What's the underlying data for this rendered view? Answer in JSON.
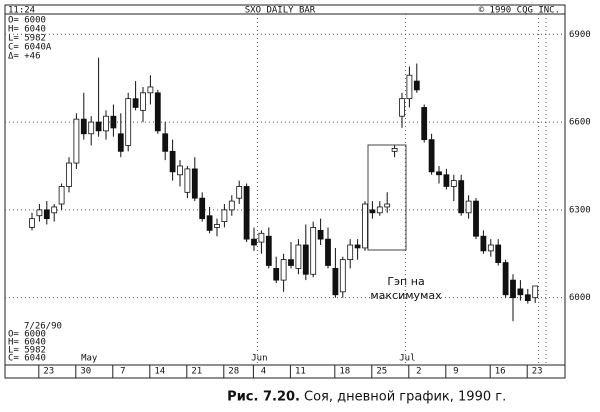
{
  "chart_data": {
    "type": "candlestick",
    "header": [
      "11:24",
      "SXO DAILY BAR",
      "© 1990 CQG INC."
    ],
    "info_top": [
      "O= 6000",
      "H= 6040",
      "L= 5982",
      "C= 6040A",
      "Δ=  +46"
    ],
    "info_bottom": [
      "7/26/90",
      "O=  6000",
      "H=  6040",
      "L=  5982",
      "C=  6040"
    ],
    "annotation": [
      "Гэп на",
      "максимумах"
    ],
    "caption_label": "Рис. 7.20.",
    "caption": "Соя, дневной график, 1990 г.",
    "categories": [
      null,
      null,
      "23",
      null,
      null,
      null,
      null,
      "30",
      null,
      null,
      null,
      null,
      "7",
      null,
      null,
      null,
      null,
      "14",
      null,
      null,
      null,
      null,
      "21",
      null,
      null,
      null,
      null,
      "28",
      null,
      null,
      null,
      "4",
      null,
      null,
      null,
      null,
      "11",
      null,
      null,
      null,
      null,
      null,
      "18",
      null,
      null,
      null,
      null,
      "25",
      null,
      null,
      null,
      null,
      "2",
      null,
      null,
      null,
      null,
      "9",
      null,
      null,
      null,
      null,
      null,
      "16",
      null,
      null,
      null,
      null,
      "23",
      null,
      null
    ],
    "months": [
      null,
      null,
      null,
      null,
      null,
      null,
      null,
      null,
      "May",
      null,
      null,
      null,
      null,
      null,
      null,
      null,
      null,
      null,
      null,
      null,
      null,
      null,
      null,
      null,
      null,
      null,
      null,
      null,
      null,
      null,
      null,
      "Jun",
      null,
      null,
      null,
      null,
      null,
      null,
      null,
      null,
      null,
      null,
      null,
      null,
      null,
      null,
      null,
      null,
      null,
      null,
      null,
      "Jul",
      null,
      null,
      null,
      null,
      null,
      null,
      null,
      null,
      null,
      null,
      null,
      null,
      null,
      null,
      null,
      null,
      null
    ],
    "open": [
      6240,
      6280,
      6300,
      6290,
      6320,
      6380,
      6460,
      6610,
      6560,
      6600,
      6570,
      6620,
      6560,
      6520,
      6680,
      6640,
      6700,
      6700,
      6560,
      6500,
      6420,
      6360,
      6440,
      6340,
      6280,
      6240,
      6260,
      6300,
      6340,
      6380,
      6200,
      6190,
      6210,
      6100,
      6060,
      6130,
      6100,
      6180,
      6080,
      6230,
      6200,
      6100,
      6020,
      6130,
      6180,
      6170,
      6300,
      6290,
      6310,
      6500,
      6620,
      6680,
      6740,
      6650,
      6540,
      6430,
      6420,
      6380,
      6400,
      6290,
      6330,
      6210,
      6160,
      6180,
      6120,
      6060,
      6030,
      6010,
      6000
    ],
    "high": [
      6290,
      6320,
      6330,
      6320,
      6390,
      6480,
      6630,
      6700,
      6620,
      6820,
      6640,
      6660,
      6630,
      6700,
      6740,
      6720,
      6760,
      6710,
      6600,
      6540,
      6470,
      6450,
      6480,
      6360,
      6310,
      6270,
      6320,
      6350,
      6400,
      6390,
      6240,
      6230,
      6240,
      6140,
      6150,
      6190,
      6200,
      6250,
      6260,
      6270,
      6240,
      6170,
      6140,
      6200,
      6200,
      6330,
      6330,
      6330,
      6360,
      6520,
      6700,
      6790,
      6800,
      6660,
      6560,
      6450,
      6440,
      6420,
      6420,
      6350,
      6340,
      6230,
      6200,
      6200,
      6130,
      6080,
      6060,
      6030,
      6040
    ],
    "low": [
      6230,
      6260,
      6250,
      6260,
      6300,
      6360,
      6440,
      6540,
      6520,
      6550,
      6540,
      6550,
      6480,
      6500,
      6640,
      6600,
      6660,
      6560,
      6470,
      6400,
      6380,
      6340,
      6330,
      6260,
      6220,
      6210,
      6240,
      6280,
      6320,
      6190,
      6160,
      6150,
      6100,
      6050,
      6020,
      6100,
      6080,
      6060,
      6070,
      6180,
      6100,
      6000,
      6000,
      6100,
      6130,
      6160,
      6270,
      6280,
      6290,
      6480,
      6580,
      6650,
      6700,
      6530,
      6420,
      6390,
      6370,
      6330,
      6280,
      6270,
      6200,
      6150,
      6140,
      6110,
      6000,
      5920,
      5990,
      5980,
      5982
    ],
    "close": [
      6270,
      6300,
      6270,
      6310,
      6380,
      6460,
      6610,
      6560,
      6600,
      6570,
      6620,
      6580,
      6500,
      6680,
      6650,
      6700,
      6720,
      6570,
      6500,
      6430,
      6450,
      6440,
      6340,
      6270,
      6230,
      6250,
      6300,
      6330,
      6380,
      6200,
      6180,
      6220,
      6110,
      6060,
      6130,
      6110,
      6180,
      6080,
      6240,
      6200,
      6110,
      6010,
      6130,
      6180,
      6170,
      6320,
      6290,
      6310,
      6320,
      6510,
      6680,
      6760,
      6710,
      6540,
      6430,
      6420,
      6380,
      6400,
      6290,
      6330,
      6210,
      6160,
      6180,
      6120,
      6010,
      6000,
      6010,
      5990,
      6040
    ],
    "ylim": [
      5770,
      7000
    ],
    "yticks": [
      6000,
      6300,
      6600,
      6900
    ],
    "grid": true,
    "color": "#111111"
  }
}
